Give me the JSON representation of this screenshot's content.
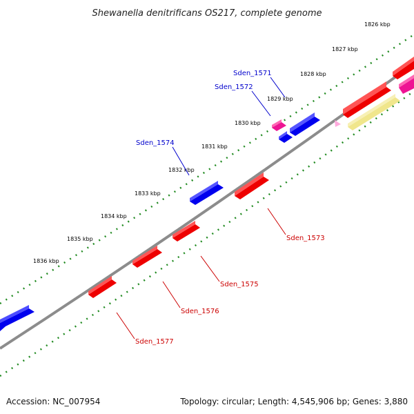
{
  "title": "Shewanella denitrificans OS217, complete genome",
  "footer": {
    "accession": "Accession: NC_007954",
    "summary": "Topology: circular; Length: 4,545,906 bp; Genes: 3,880"
  },
  "colors": {
    "backbone": "#808080",
    "tick": "#228b22",
    "forward_gene": "#0000ee",
    "reverse_gene": "#ee0000",
    "pink_gene": "#ee1493",
    "yellow_gene": "#f0e68c",
    "forward_label": "#0000cc",
    "reverse_label": "#cc0000"
  },
  "kbp_ticks": [
    "1826 kbp",
    "1827 kbp",
    "1828 kbp",
    "1829 kbp",
    "1830 kbp",
    "1831 kbp",
    "1832 kbp",
    "1833 kbp",
    "1834 kbp",
    "1835 kbp",
    "1836 kbp"
  ],
  "forward_labels": [
    "Sden_1571",
    "Sden_1572",
    "Sden_1574"
  ],
  "reverse_labels": [
    "Sden_1573",
    "Sden_1575",
    "Sden_1576",
    "Sden_1577"
  ]
}
